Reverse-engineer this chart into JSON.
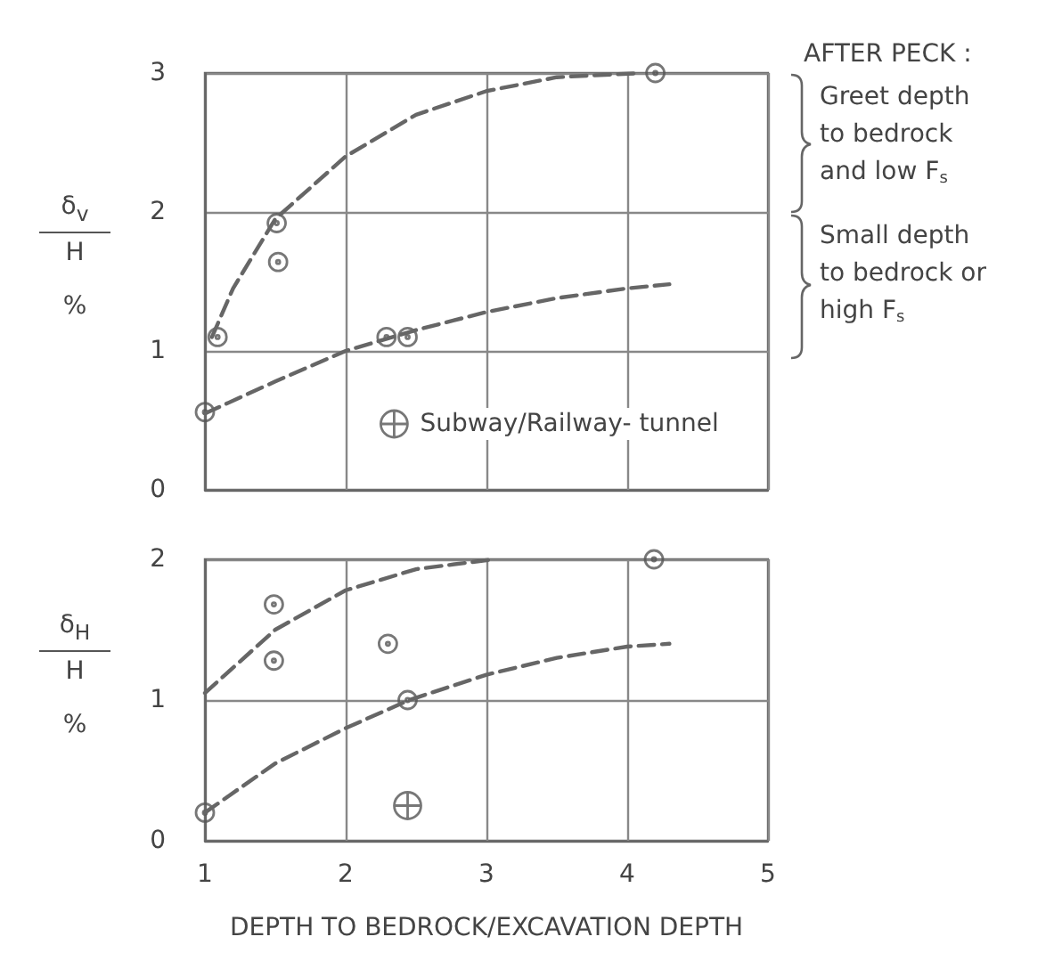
{
  "chart_data": [
    {
      "type": "scatter",
      "ylabel": "δ$_{v}$ H %",
      "xlim": [
        1,
        5
      ],
      "xticks": [
        1,
        2,
        3,
        4,
        5
      ],
      "ylim": [
        0,
        3
      ],
      "yticks": [
        0,
        1,
        2,
        3
      ],
      "grid": true,
      "tick_labels": "y",
      "legend": "bottom",
      "annotations": [
        "AFTER PECK :",
        "Greet depth to bedrock and low F$_{s}$",
        "Small depth to bedrock or high F$_{s}$"
      ],
      "series": [
        {
          "color": "#555555",
          "marker": "circle",
          "x": [
            1.09,
            1.51,
            1.52,
            2.29,
            2.44,
            1.0,
            4.2
          ],
          "values": [
            1.1,
            1.92,
            1.64,
            1.1,
            1.1,
            0.56,
            3.0
          ]
        },
        {
          "type": "line",
          "color": "#666666",
          "line_style": "dashed",
          "marker": "none",
          "x": [
            1.05,
            1.2,
            1.5,
            2,
            2.5,
            3,
            3.5,
            4.1
          ],
          "values": [
            1.1,
            1.45,
            1.95,
            2.4,
            2.7,
            2.87,
            2.97,
            3.0
          ]
        },
        {
          "type": "line",
          "color": "#666666",
          "line_style": "dashed",
          "marker": "none",
          "x": [
            1,
            1.5,
            2,
            2.5,
            3,
            3.5,
            4,
            4.3
          ],
          "values": [
            0.55,
            0.78,
            1.0,
            1.15,
            1.28,
            1.38,
            1.45,
            1.48
          ]
        },
        {
          "name": "Subway/Railway- tunnel",
          "color": "#555555",
          "marker": "cross"
        }
      ]
    },
    {
      "type": "scatter",
      "xlabel": "DEPTH TO BEDROCK/EXCAVATION DEPTH",
      "ylabel": "δ$_{H}$ H %",
      "xlim": [
        1,
        5
      ],
      "xticks": [
        1,
        2,
        3,
        4,
        5
      ],
      "ylim": [
        0,
        2
      ],
      "yticks": [
        0,
        1,
        2
      ],
      "grid": true,
      "series": [
        {
          "color": "#555555",
          "marker": "circle",
          "x": [
            1.49,
            1.49,
            2.3,
            2.44,
            1.0,
            4.19
          ],
          "values": [
            1.68,
            1.28,
            1.4,
            1.0,
            0.2,
            2.0
          ]
        },
        {
          "type": "line",
          "color": "#666666",
          "line_style": "dashed",
          "marker": "none",
          "x": [
            1,
            1.5,
            2,
            2.5,
            3.05
          ],
          "values": [
            1.05,
            1.5,
            1.78,
            1.93,
            2.0
          ]
        },
        {
          "type": "line",
          "color": "#666666",
          "line_style": "dashed",
          "marker": "none",
          "x": [
            1,
            1.5,
            2,
            2.45,
            3,
            3.5,
            4,
            4.3
          ],
          "values": [
            0.2,
            0.55,
            0.8,
            1.0,
            1.18,
            1.3,
            1.38,
            1.4
          ]
        },
        {
          "color": "#555555",
          "marker": "cross",
          "x": [
            2.44
          ],
          "values": [
            0.25
          ]
        }
      ]
    }
  ]
}
